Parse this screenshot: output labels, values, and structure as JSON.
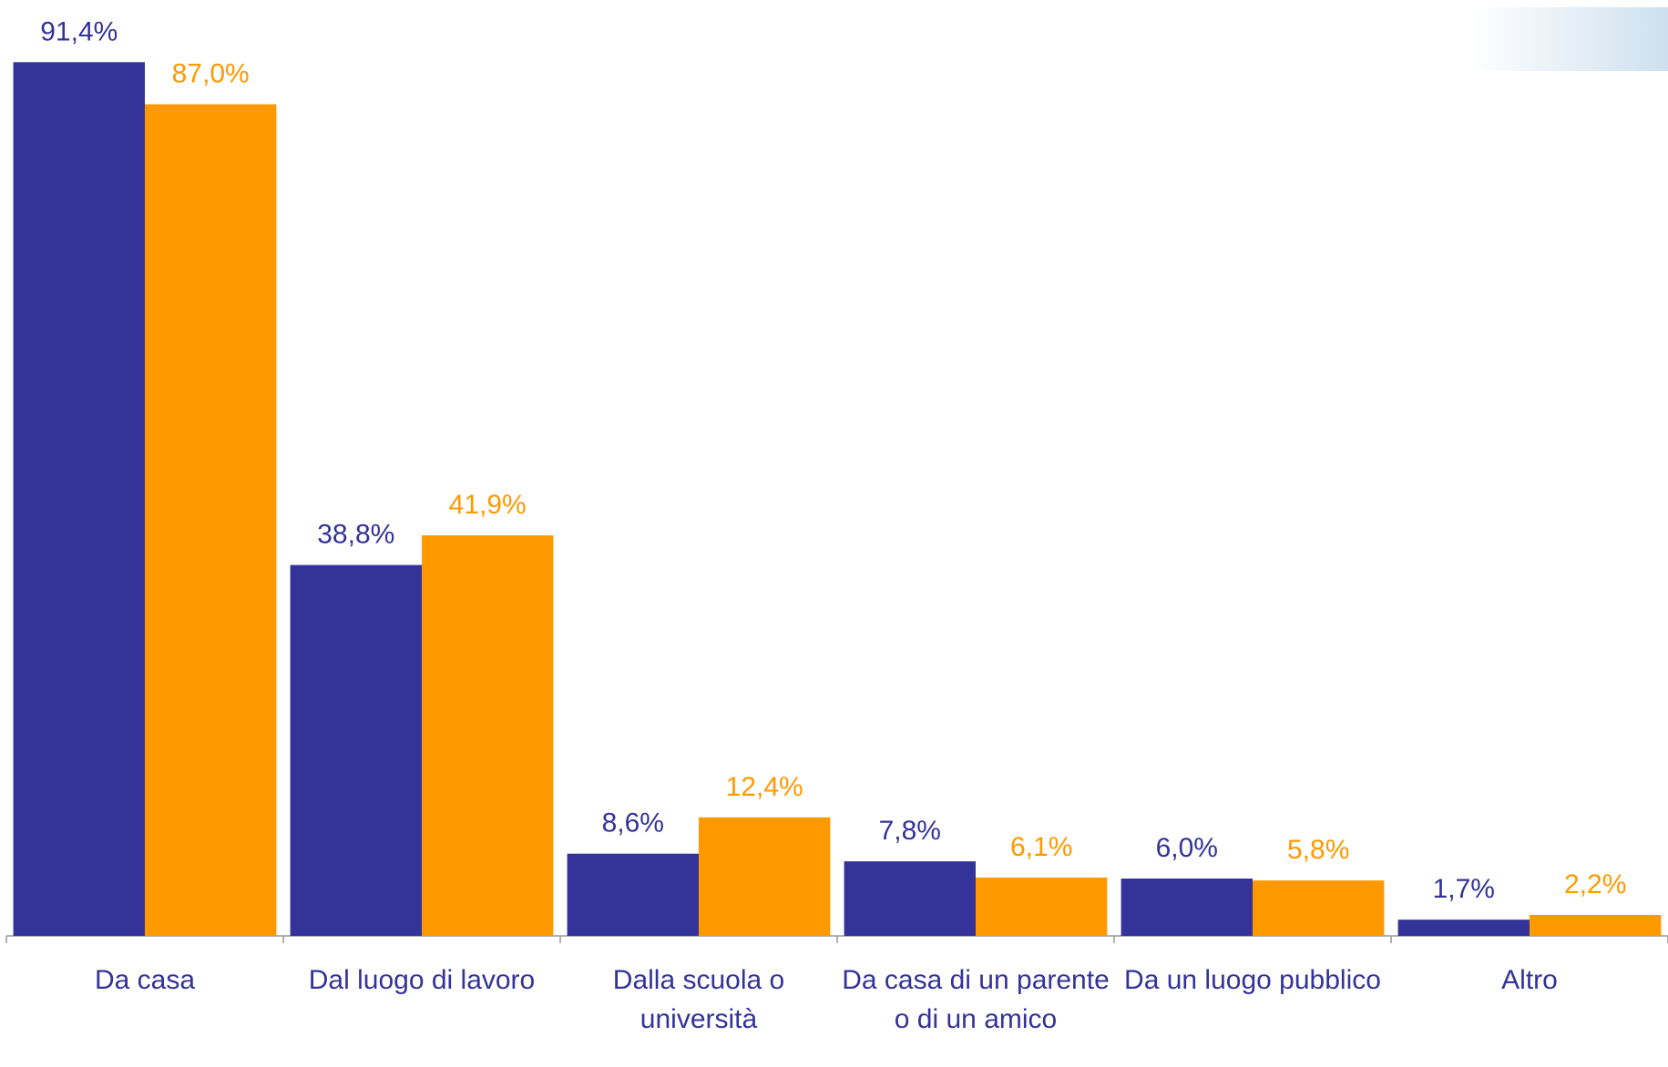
{
  "chart_data": {
    "type": "bar",
    "categories": [
      "Da casa",
      "Dal luogo di lavoro",
      "Dalla scuola o università",
      "Da casa di un parente o di un amico",
      "Da un luogo pubblico",
      "Altro"
    ],
    "series": [
      {
        "color": "#333399",
        "values": [
          91.4,
          38.8,
          8.6,
          7.8,
          6.0,
          1.7
        ],
        "value_labels": [
          "91,4%",
          "38,8%",
          "8,6%",
          "7,8%",
          "6,0%",
          "1,7%"
        ]
      },
      {
        "color": "#FF9900",
        "values": [
          87.0,
          41.9,
          12.4,
          6.1,
          5.8,
          2.2
        ],
        "value_labels": [
          "87,0%",
          "41,9%",
          "12,4%",
          "6,1%",
          "5,8%",
          "2,2%"
        ]
      }
    ]
  }
}
